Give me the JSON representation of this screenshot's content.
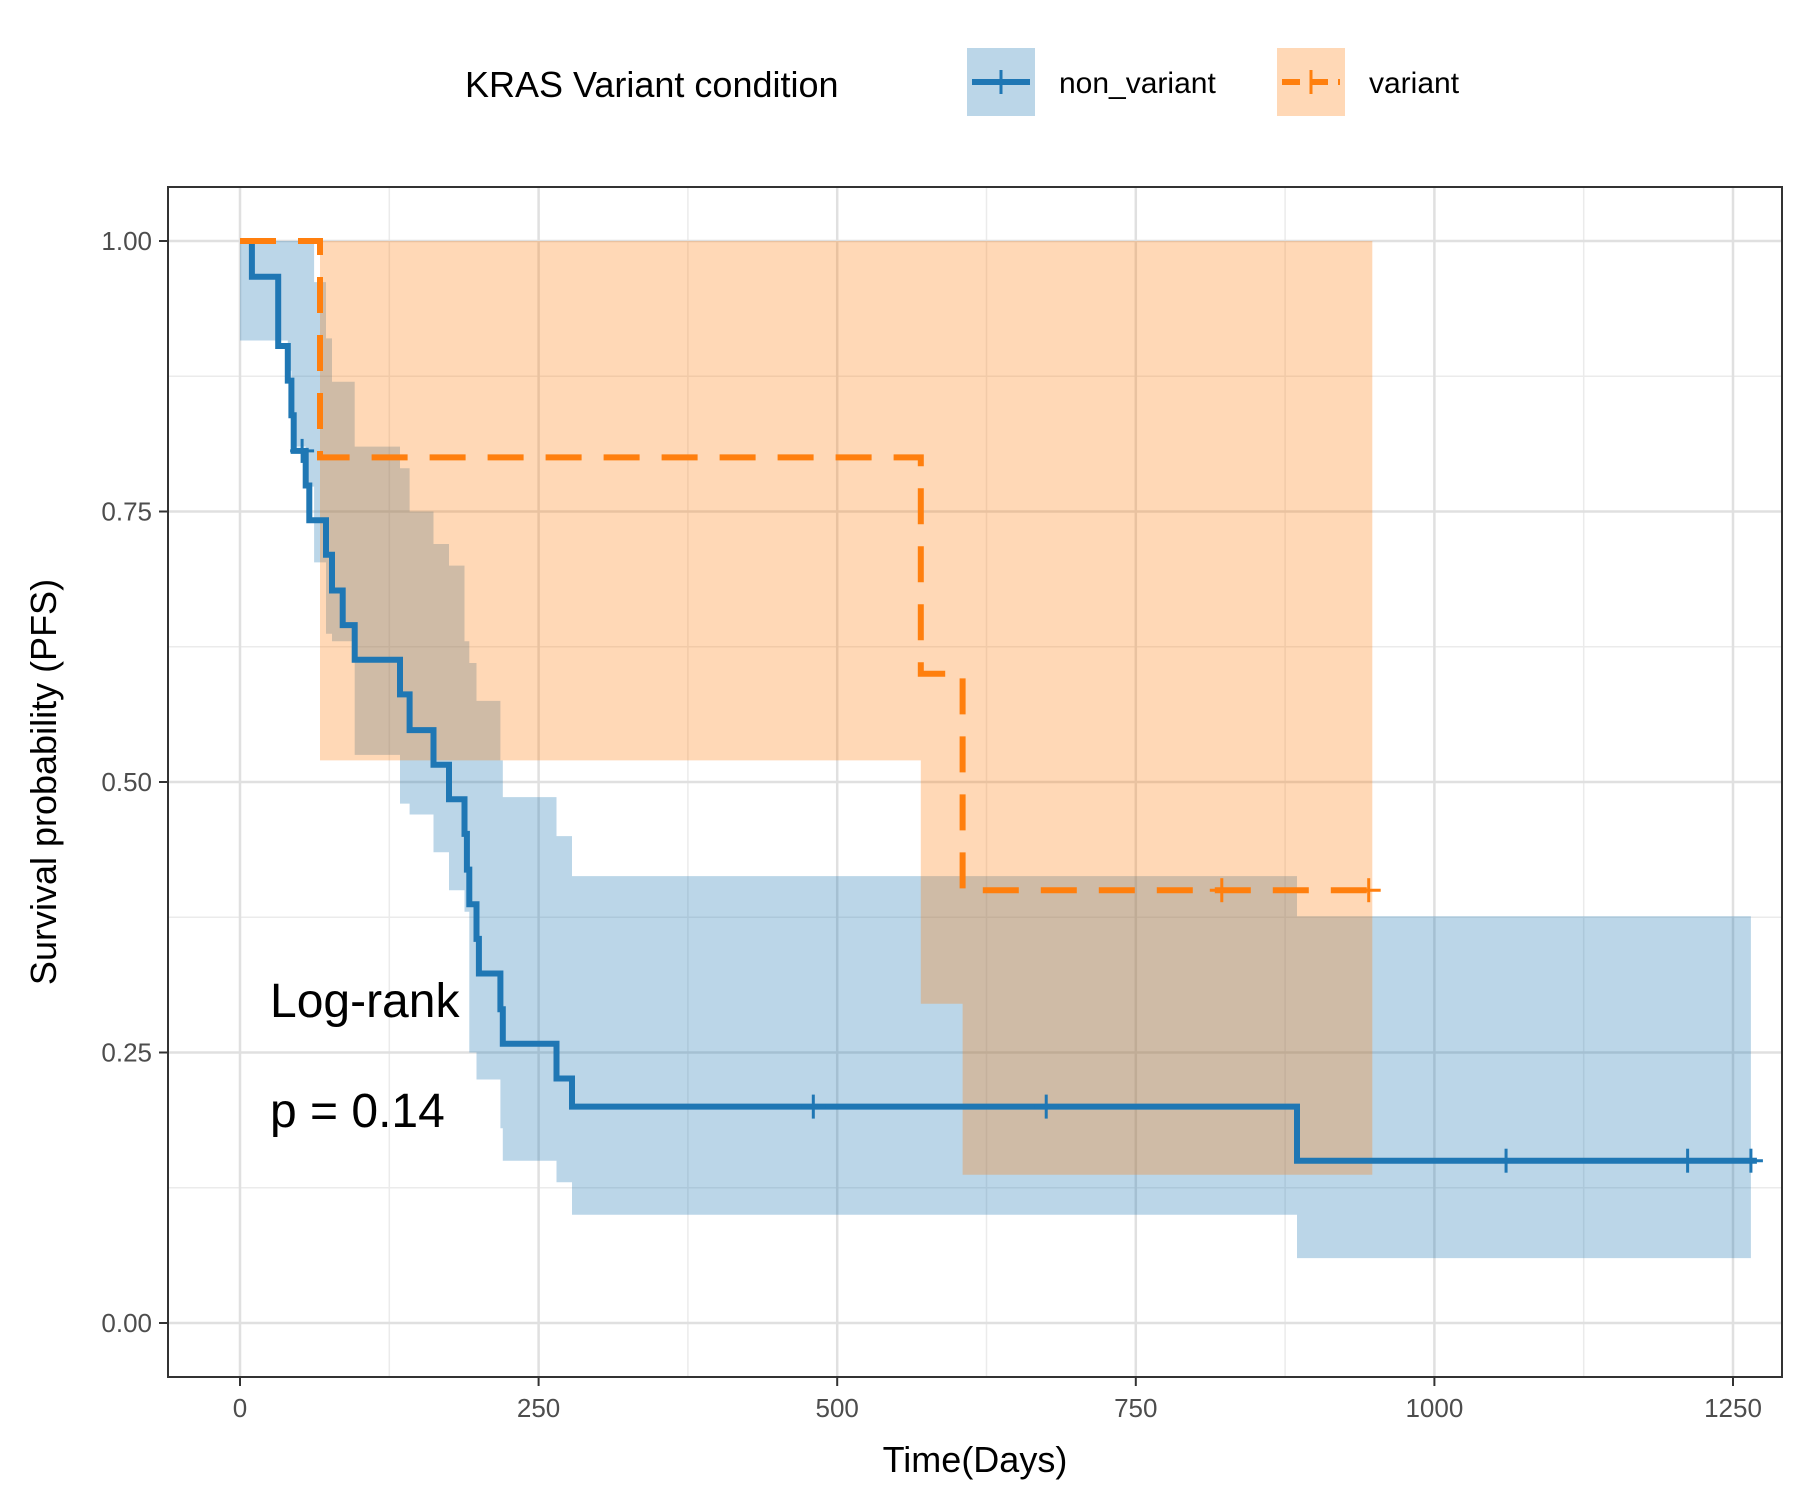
{
  "chart_data": {
    "type": "line",
    "subtype": "kaplan-meier",
    "xlabel": "Time(Days)",
    "ylabel": "Survival probability (PFS)",
    "xlim": [
      -60,
      1290
    ],
    "ylim": [
      -0.05,
      1.05
    ],
    "x_ticks": [
      0,
      250,
      500,
      750,
      1000,
      1250
    ],
    "x_tick_labels": [
      "0",
      "250",
      "500",
      "750",
      "1000",
      "1250"
    ],
    "y_ticks": [
      0,
      0.25,
      0.5,
      0.75,
      1.0
    ],
    "y_tick_labels": [
      "0.00",
      "0.25",
      "0.50",
      "0.75",
      "1.00"
    ],
    "grid": true,
    "legend": {
      "title": "KRAS Variant condition",
      "position": "top"
    },
    "series": [
      {
        "name": "non_variant",
        "color": "#1f77b4",
        "dash": "solid",
        "steps": [
          [
            0,
            1.0
          ],
          [
            10,
            0.967
          ],
          [
            32,
            0.903
          ],
          [
            40,
            0.871
          ],
          [
            43,
            0.839
          ],
          [
            45,
            0.806
          ],
          [
            55,
            0.774
          ],
          [
            58,
            0.742
          ],
          [
            72,
            0.71
          ],
          [
            77,
            0.677
          ],
          [
            86,
            0.645
          ],
          [
            96,
            0.613
          ],
          [
            134,
            0.581
          ],
          [
            142,
            0.548
          ],
          [
            162,
            0.516
          ],
          [
            175,
            0.484
          ],
          [
            188,
            0.452
          ],
          [
            190,
            0.419
          ],
          [
            192,
            0.387
          ],
          [
            198,
            0.355
          ],
          [
            200,
            0.323
          ],
          [
            218,
            0.29
          ],
          [
            220,
            0.258
          ],
          [
            265,
            0.226
          ],
          [
            278,
            0.2
          ],
          [
            885,
            0.15
          ],
          [
            1270,
            0.15
          ]
        ],
        "ci": [
          [
            0,
            0.91,
            1.0
          ],
          [
            40,
            0.88,
            1.0
          ],
          [
            45,
            0.83,
            1.0
          ],
          [
            50,
            0.79,
            1.0
          ],
          [
            58,
            0.7,
            0.97
          ],
          [
            62,
            0.66,
            0.94
          ],
          [
            72,
            0.63,
            0.9
          ],
          [
            82,
            0.58,
            0.87
          ],
          [
            96,
            0.52,
            0.81
          ],
          [
            134,
            0.49,
            0.78
          ],
          [
            142,
            0.46,
            0.76
          ],
          [
            162,
            0.43,
            0.73
          ],
          [
            175,
            0.4,
            0.71
          ],
          [
            190,
            0.36,
            0.67
          ],
          [
            198,
            0.33,
            0.63
          ],
          [
            218,
            0.28,
            0.58
          ],
          [
            265,
            0.24,
            0.52
          ],
          [
            278,
            0.21,
            0.48
          ],
          [
            885,
            0.14,
            0.44
          ],
          [
            1265,
            0.14,
            0.44
          ]
        ],
        "ci_steps": [
          [
            0,
            0.908,
            1.0
          ],
          [
            40,
            0.88,
            1.0
          ],
          [
            43,
            0.847,
            1.0
          ],
          [
            45,
            0.81,
            1.0
          ],
          [
            55,
            0.773,
            1.0
          ],
          [
            62,
            0.703,
            0.962
          ],
          [
            72,
            0.637,
            0.91
          ],
          [
            77,
            0.63,
            0.87
          ],
          [
            96,
            0.525,
            0.81
          ],
          [
            134,
            0.48,
            0.79
          ],
          [
            142,
            0.47,
            0.75
          ],
          [
            162,
            0.435,
            0.72
          ],
          [
            175,
            0.4,
            0.7
          ],
          [
            188,
            0.38,
            0.63
          ],
          [
            192,
            0.25,
            0.61
          ],
          [
            198,
            0.225,
            0.575
          ],
          [
            218,
            0.18,
            0.52
          ],
          [
            220,
            0.15,
            0.486
          ],
          [
            265,
            0.13,
            0.45
          ],
          [
            278,
            0.1,
            0.413
          ],
          [
            885,
            0.06,
            0.376
          ],
          [
            1265,
            0.06,
            0.376
          ]
        ],
        "censor_x": [
          52,
          480,
          675,
          1060,
          1212,
          1265
        ]
      },
      {
        "name": "variant",
        "color": "#ff7f0e",
        "dash": "dashed",
        "steps": [
          [
            0,
            1.0
          ],
          [
            67,
            0.8
          ],
          [
            570,
            0.6
          ],
          [
            605,
            0.4
          ],
          [
            948,
            0.4
          ]
        ],
        "ci_steps": [
          [
            0,
            1.0,
            1.0
          ],
          [
            67,
            0.52,
            1.0
          ],
          [
            570,
            0.295,
            1.0
          ],
          [
            605,
            0.137,
            1.0
          ],
          [
            948,
            0.137,
            1.0
          ]
        ],
        "censor_x": [
          822,
          945
        ]
      }
    ],
    "annotations": [
      "Log-rank",
      "p = 0.14"
    ]
  }
}
